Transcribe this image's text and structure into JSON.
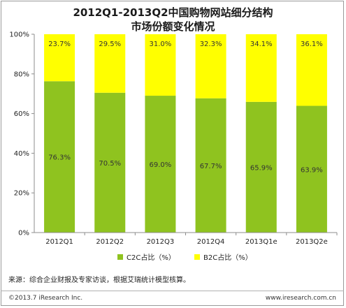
{
  "title_line1": "2012Q1-2013Q2中国购物网站细分结构",
  "title_line2": "市场份额变化情况",
  "chart_data": {
    "type": "bar",
    "stacked": true,
    "categories": [
      "2012Q1",
      "2012Q2",
      "2012Q3",
      "2012Q4",
      "2013Q1e",
      "2013Q2e"
    ],
    "series": [
      {
        "name": "C2C占比（%）",
        "values": [
          76.3,
          70.5,
          69.0,
          67.7,
          65.9,
          63.9
        ],
        "labels": [
          "76.3%",
          "70.5%",
          "69.0%",
          "67.7%",
          "65.9%",
          "63.9%"
        ],
        "color": "#8fc31f"
      },
      {
        "name": "B2C占比（%）",
        "values": [
          23.7,
          29.5,
          31.0,
          32.3,
          34.1,
          36.1
        ],
        "labels": [
          "23.7%",
          "29.5%",
          "31.0%",
          "32.3%",
          "34.1%",
          "36.1%"
        ],
        "color": "#ffff00"
      }
    ],
    "yticks": [
      "0%",
      "20%",
      "40%",
      "60%",
      "80%",
      "100%"
    ],
    "ylim": [
      0,
      100
    ],
    "grid": false,
    "legend_position": "bottom"
  },
  "source_text": "来源：综合企业财报及专家访谈，根据艾瑞统计模型核算。",
  "copyright": "©2013.7 iResearch Inc.",
  "website": "www.iresearch.com.cn",
  "colors": {
    "border": "#9a9a9a",
    "axis": "#8c8c8c"
  }
}
